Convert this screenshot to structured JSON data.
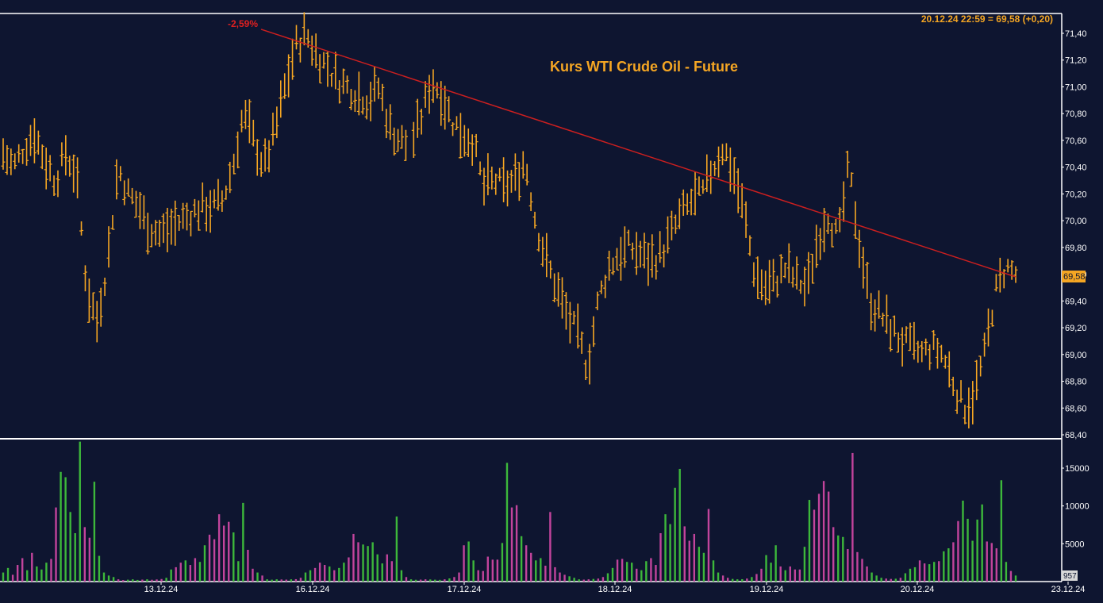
{
  "colors": {
    "background": "#0e1530",
    "price_bars": "#f5a623",
    "trend_line": "#cc1f1f",
    "title": "#f5a623",
    "volume_up": "#3db83b",
    "volume_down": "#c2449c",
    "grid_border": "#ffffff",
    "last_price_box": "#f5a623"
  },
  "chart_data": [
    {
      "type": "ohlc",
      "title": "Kurs WTI Crude Oil - Future",
      "last_quote": "20.12.24 22:59 = 69,58 (+0,20)",
      "last_price_tag": "69,58",
      "annotation": "-2,59%",
      "ylim": [
        68.4,
        71.5
      ],
      "y_ticks": [
        "71,40",
        "71,20",
        "71,00",
        "70,80",
        "70,60",
        "70,40",
        "70,20",
        "70,00",
        "69,80",
        "69,60",
        "69,40",
        "69,20",
        "69,00",
        "68,80",
        "68,60",
        "68,40"
      ],
      "x_ticks": [
        "13.12.24",
        "16.12.24",
        "17.12.24",
        "18.12.24",
        "19.12.24",
        "20.12.24",
        "23.12.24"
      ],
      "trend_line": {
        "from": {
          "x": "15.12.24 20:00",
          "y": 71.43
        },
        "to": {
          "x": "20.12.24 22:59",
          "y": 69.58
        }
      },
      "approx_price_path": [
        70.5,
        70.4,
        70.55,
        70.65,
        70.45,
        70.3,
        70.5,
        70.35,
        69.5,
        69.25,
        69.7,
        70.4,
        70.2,
        70.1,
        69.95,
        69.9,
        69.95,
        70.0,
        70.05,
        70.1,
        70.1,
        70.15,
        70.4,
        70.8,
        70.6,
        70.4,
        70.65,
        71.0,
        71.3,
        71.4,
        71.25,
        71.15,
        71.05,
        71.0,
        70.95,
        70.9,
        71.0,
        70.7,
        70.6,
        70.55,
        70.75,
        71.05,
        70.95,
        70.75,
        70.65,
        70.6,
        70.25,
        70.3,
        70.25,
        70.3,
        70.45,
        70.0,
        69.7,
        69.5,
        69.3,
        69.15,
        68.9,
        69.4,
        69.65,
        69.75,
        69.8,
        69.75,
        69.7,
        69.75,
        69.9,
        70.05,
        70.15,
        70.2,
        70.4,
        70.55,
        70.35,
        70.05,
        69.6,
        69.5,
        69.55,
        69.65,
        69.55,
        69.5,
        69.85,
        70.05,
        69.85,
        70.4,
        69.85,
        69.4,
        69.3,
        69.2,
        69.1,
        69.05,
        69.0,
        69.05,
        69.0,
        68.8,
        68.6,
        68.7,
        69.0,
        69.45,
        69.65,
        69.6
      ],
      "series": []
    },
    {
      "type": "bar",
      "title": "",
      "ylim": [
        0,
        18500
      ],
      "y_ticks": [
        "15000",
        "10000",
        "5000"
      ],
      "last_volume_tag": "957",
      "x_ticks": [
        "13.12.24",
        "16.12.24",
        "17.12.24",
        "18.12.24",
        "19.12.24",
        "20.12.24",
        "23.12.24"
      ],
      "series": [
        {
          "values": [
            1200,
            1800,
            900,
            2200,
            3100,
            1500,
            3800,
            2000,
            1600,
            2500,
            3000,
            9800,
            14500,
            13800,
            9200,
            6400,
            18500,
            7200,
            5800,
            13200,
            3400,
            1200,
            800,
            600,
            300,
            200,
            250,
            300,
            220,
            260,
            300,
            240,
            280,
            340,
            500,
            1600,
            1900,
            2500,
            2800,
            2200,
            3100,
            2600,
            4800,
            6200,
            5600,
            8900,
            7400,
            7900,
            6500,
            2700,
            10400,
            4200,
            1700,
            1200,
            800,
            300,
            250,
            300,
            280,
            260,
            300,
            320,
            500,
            1200,
            1500,
            1800,
            2500,
            2200,
            2000,
            1500,
            1800,
            2500,
            3200,
            6300,
            5200,
            4900,
            4700,
            5200,
            3600,
            2400,
            3600,
            2700,
            8600,
            1500,
            600,
            300,
            240,
            260,
            300,
            280,
            250,
            230,
            300,
            420,
            600,
            1200,
            4800,
            5300,
            2800,
            1500,
            1400,
            3300,
            2900,
            2900,
            5100,
            15700,
            9800,
            10100,
            6000,
            4800,
            3800,
            2800,
            3100,
            2100,
            9200,
            1900,
            1200,
            900,
            700,
            500,
            300,
            260,
            300,
            350,
            400,
            600,
            1100,
            1800,
            2900,
            3000,
            2600,
            2500,
            1700,
            1500,
            2700,
            3100,
            2200,
            6400,
            8900,
            7600,
            12400,
            14900,
            7300,
            5400,
            6300,
            4600,
            3800,
            9600,
            2800,
            1200,
            800,
            500,
            350,
            300,
            320,
            400,
            600,
            1000,
            1700,
            3500,
            2500,
            4800,
            2000,
            1500,
            2000,
            1600,
            1600,
            4600,
            10800,
            9500,
            11600,
            13300,
            11900,
            7200,
            6100,
            5900,
            4300,
            17000,
            3900,
            3000,
            2000,
            1200,
            800,
            500,
            400,
            350,
            380,
            500,
            1100,
            1700,
            1900,
            2800,
            2400,
            2300,
            2600,
            2700,
            4000,
            4400,
            5200,
            8000,
            10700,
            8300,
            5400,
            8200,
            10200,
            5300,
            5100,
            4400,
            13400,
            2600,
            1400,
            800
          ]
        }
      ]
    }
  ]
}
